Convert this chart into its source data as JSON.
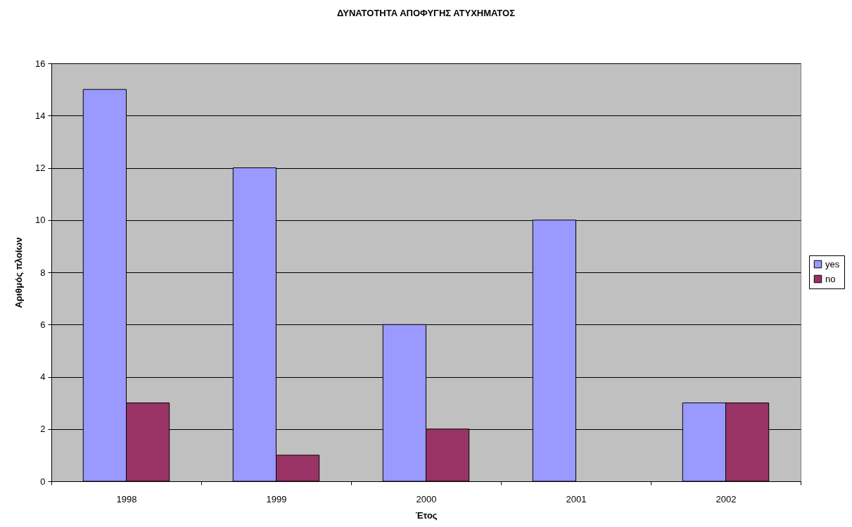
{
  "chart_data": {
    "type": "bar",
    "title": "ΔΥΝΑΤΟΤΗΤΑ ΑΠΟΦΥΓΗΣ ΑΤΥΧΗΜΑΤΟΣ",
    "xlabel": "Έτος",
    "ylabel": "Αριθμός πλοίων",
    "categories": [
      "1998",
      "1999",
      "2000",
      "2001",
      "2002"
    ],
    "series": [
      {
        "name": "yes",
        "color": "#9999ff",
        "values": [
          15,
          12,
          6,
          10,
          3
        ]
      },
      {
        "name": "no",
        "color": "#993366",
        "values": [
          3,
          1,
          2,
          null,
          3
        ]
      }
    ],
    "ylim": [
      0,
      16
    ],
    "yticks": [
      0,
      2,
      4,
      6,
      8,
      10,
      12,
      14,
      16
    ],
    "grid": "y",
    "legend": "right"
  }
}
